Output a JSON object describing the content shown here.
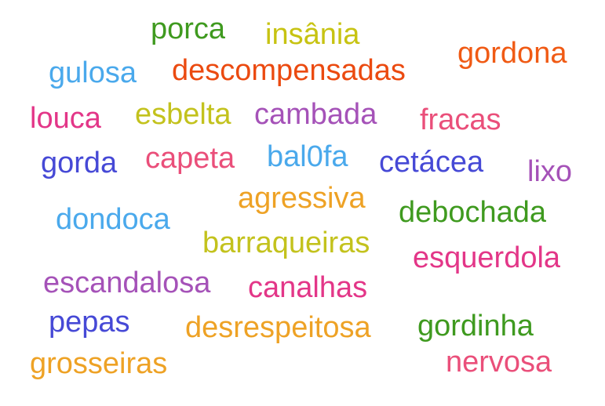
{
  "words": [
    {
      "text": "porca",
      "color": "#3f9a1f"
    },
    {
      "text": "insânia",
      "color": "#c7c312"
    },
    {
      "text": "gordona",
      "color": "#f05a14"
    },
    {
      "text": "gulosa",
      "color": "#4aa9ec"
    },
    {
      "text": "descompensadas",
      "color": "#eb4a10"
    },
    {
      "text": "louca",
      "color": "#e33688"
    },
    {
      "text": "esbelta",
      "color": "#c3c21d"
    },
    {
      "text": "cambada",
      "color": "#a552b8"
    },
    {
      "text": "fracas",
      "color": "#ea4f7a"
    },
    {
      "text": "gorda",
      "color": "#4649d6"
    },
    {
      "text": "capeta",
      "color": "#ea4f7a"
    },
    {
      "text": "bal0fa",
      "color": "#4aa9ec"
    },
    {
      "text": "cetácea",
      "color": "#4649d6"
    },
    {
      "text": "lixo",
      "color": "#a552b8"
    },
    {
      "text": "agressiva",
      "color": "#eea225"
    },
    {
      "text": "dondoca",
      "color": "#4aa9ec"
    },
    {
      "text": "debochada",
      "color": "#3f9a1f"
    },
    {
      "text": "barraqueiras",
      "color": "#c3c21d"
    },
    {
      "text": "esquerdola",
      "color": "#e33688"
    },
    {
      "text": "escandalosa",
      "color": "#a552b8"
    },
    {
      "text": "canalhas",
      "color": "#e33688"
    },
    {
      "text": "pepas",
      "color": "#4649d6"
    },
    {
      "text": "desrespeitosa",
      "color": "#eea225"
    },
    {
      "text": "gordinha",
      "color": "#3f9a1f"
    },
    {
      "text": "grosseiras",
      "color": "#eea225"
    },
    {
      "text": "nervosa",
      "color": "#ea4f7a"
    }
  ]
}
